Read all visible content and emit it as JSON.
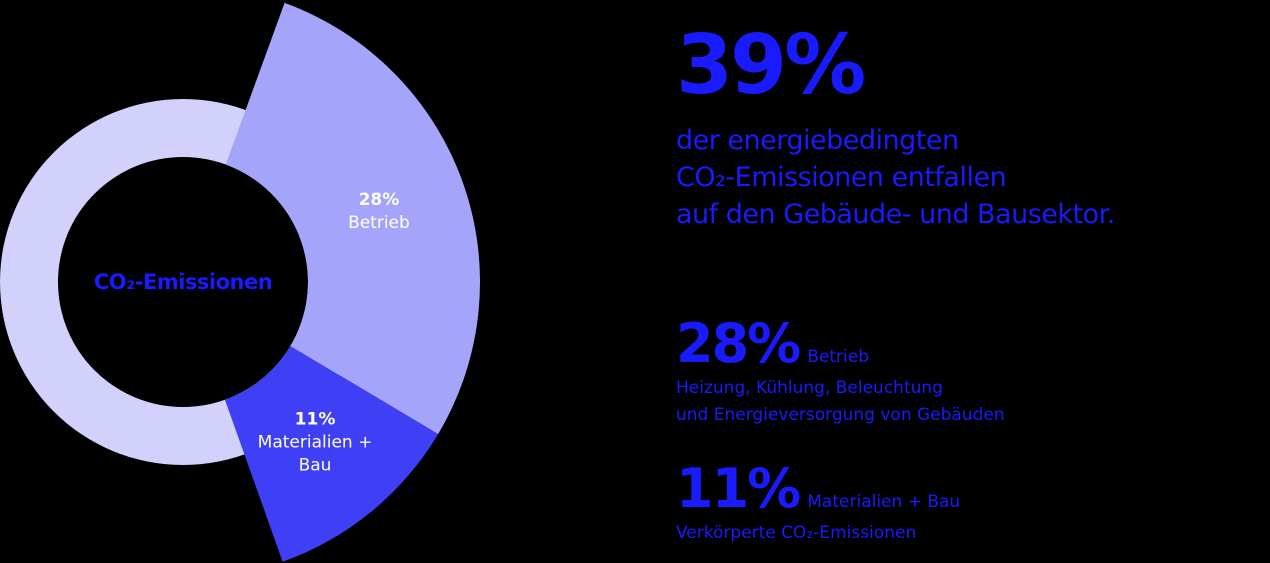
{
  "chart_data": {
    "type": "pie",
    "center_label": "CO₂-Emissionen",
    "categories": [
      "Betrieb",
      "Materialien + Bau"
    ],
    "values": [
      28,
      11
    ],
    "value_labels": [
      "28%",
      "11%"
    ],
    "colors": [
      "#a4a4fb",
      "#3f3ff5"
    ]
  },
  "headline": {
    "value": "39%",
    "lines": [
      "der energiebedingten",
      "CO₂-Emissionen entfallen",
      "auf den Gebäude- und Bausektor."
    ]
  },
  "details": [
    {
      "lines": [
        "Heizung, Kühlung, Beleuchtung",
        "und Energieversorgung von Gebäuden"
      ]
    },
    {
      "lines": [
        "Verkörperte CO₂-Emissionen"
      ]
    }
  ]
}
